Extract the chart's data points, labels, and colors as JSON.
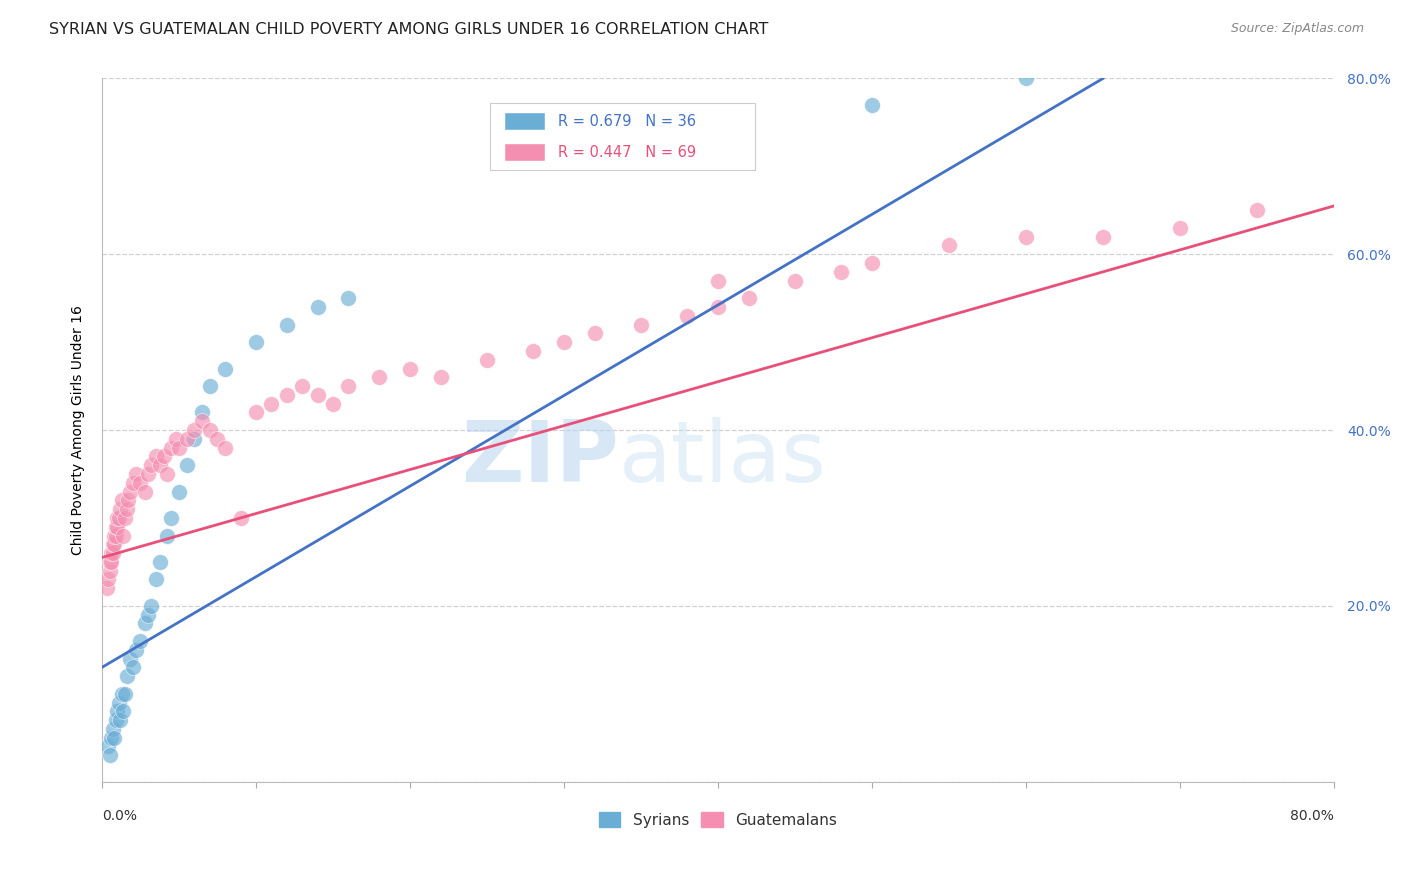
{
  "title": "SYRIAN VS GUATEMALAN CHILD POVERTY AMONG GIRLS UNDER 16 CORRELATION CHART",
  "source": "Source: ZipAtlas.com",
  "ylabel": "Child Poverty Among Girls Under 16",
  "watermark_zip": "ZIP",
  "watermark_atlas": "atlas",
  "syrians_color": "#6aaed6",
  "guatemalans_color": "#f48fb1",
  "syrian_line_color": "#4472c4",
  "guatemalan_line_color": "#e8507a",
  "xlim": [
    0.0,
    0.8
  ],
  "ylim": [
    0.0,
    0.8
  ],
  "ytick_labels": [
    "",
    "20.0%",
    "40.0%",
    "60.0%",
    "80.0%"
  ],
  "ytick_positions": [
    0.0,
    0.2,
    0.4,
    0.6,
    0.8
  ],
  "background_color": "#ffffff",
  "grid_color": "#cccccc",
  "tick_color_right": "#4472c4",
  "legend_R_color": "#4472c4",
  "legend_guat_color": "#e8507a",
  "syrians_x": [
    0.004,
    0.005,
    0.006,
    0.007,
    0.008,
    0.009,
    0.01,
    0.011,
    0.012,
    0.013,
    0.014,
    0.015,
    0.016,
    0.018,
    0.02,
    0.022,
    0.025,
    0.028,
    0.03,
    0.032,
    0.035,
    0.038,
    0.042,
    0.045,
    0.05,
    0.055,
    0.06,
    0.065,
    0.07,
    0.08,
    0.1,
    0.12,
    0.14,
    0.16,
    0.5,
    0.6
  ],
  "syrians_y": [
    0.04,
    0.03,
    0.05,
    0.06,
    0.05,
    0.07,
    0.08,
    0.09,
    0.07,
    0.1,
    0.08,
    0.1,
    0.12,
    0.14,
    0.13,
    0.15,
    0.16,
    0.18,
    0.19,
    0.2,
    0.23,
    0.25,
    0.28,
    0.3,
    0.33,
    0.36,
    0.39,
    0.42,
    0.45,
    0.47,
    0.5,
    0.52,
    0.54,
    0.55,
    0.77,
    0.8
  ],
  "guatemalans_x": [
    0.003,
    0.004,
    0.005,
    0.005,
    0.006,
    0.006,
    0.007,
    0.007,
    0.008,
    0.008,
    0.009,
    0.009,
    0.01,
    0.01,
    0.011,
    0.012,
    0.013,
    0.014,
    0.015,
    0.016,
    0.017,
    0.018,
    0.02,
    0.022,
    0.025,
    0.028,
    0.03,
    0.032,
    0.035,
    0.038,
    0.04,
    0.042,
    0.045,
    0.048,
    0.05,
    0.055,
    0.06,
    0.065,
    0.07,
    0.075,
    0.08,
    0.09,
    0.1,
    0.11,
    0.12,
    0.13,
    0.14,
    0.15,
    0.16,
    0.18,
    0.2,
    0.22,
    0.25,
    0.28,
    0.3,
    0.32,
    0.35,
    0.38,
    0.4,
    0.42,
    0.45,
    0.48,
    0.5,
    0.55,
    0.6,
    0.65,
    0.7,
    0.75,
    0.4
  ],
  "guatemalans_y": [
    0.22,
    0.23,
    0.24,
    0.25,
    0.25,
    0.26,
    0.26,
    0.27,
    0.27,
    0.28,
    0.28,
    0.29,
    0.29,
    0.3,
    0.3,
    0.31,
    0.32,
    0.28,
    0.3,
    0.31,
    0.32,
    0.33,
    0.34,
    0.35,
    0.34,
    0.33,
    0.35,
    0.36,
    0.37,
    0.36,
    0.37,
    0.35,
    0.38,
    0.39,
    0.38,
    0.39,
    0.4,
    0.41,
    0.4,
    0.39,
    0.38,
    0.3,
    0.42,
    0.43,
    0.44,
    0.45,
    0.44,
    0.43,
    0.45,
    0.46,
    0.47,
    0.46,
    0.48,
    0.49,
    0.5,
    0.51,
    0.52,
    0.53,
    0.54,
    0.55,
    0.57,
    0.58,
    0.59,
    0.61,
    0.62,
    0.62,
    0.63,
    0.65,
    0.57
  ],
  "syr_line_x0": 0.0,
  "syr_line_y0": 0.13,
  "syr_line_x1": 0.65,
  "syr_line_y1": 0.8,
  "guat_line_x0": 0.0,
  "guat_line_y0": 0.255,
  "guat_line_x1": 0.8,
  "guat_line_y1": 0.655
}
